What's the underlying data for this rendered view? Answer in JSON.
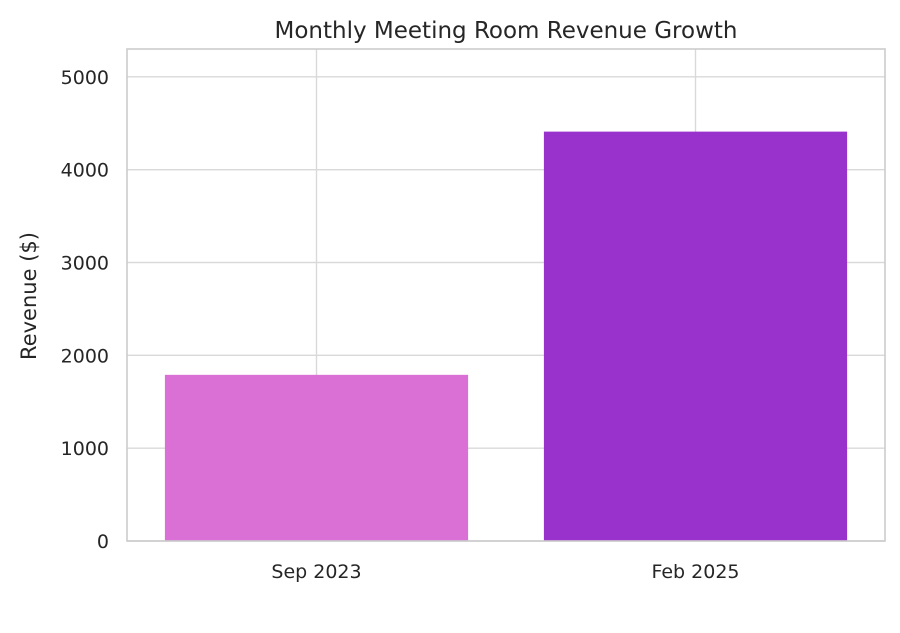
{
  "chart_data": {
    "type": "bar",
    "title": "Monthly Meeting Room Revenue Growth",
    "xlabel": "",
    "ylabel": "Revenue ($)",
    "categories": [
      "Sep 2023",
      "Feb 2025"
    ],
    "values": [
      1790,
      4410
    ],
    "colors": [
      "#DA70D6",
      "#9932CC"
    ],
    "ylim": [
      0,
      5300
    ],
    "yticks": [
      0,
      1000,
      2000,
      3000,
      4000,
      5000
    ],
    "grid": true,
    "grid_color": "#d9d9d9",
    "spine_color": "#cccccc"
  }
}
